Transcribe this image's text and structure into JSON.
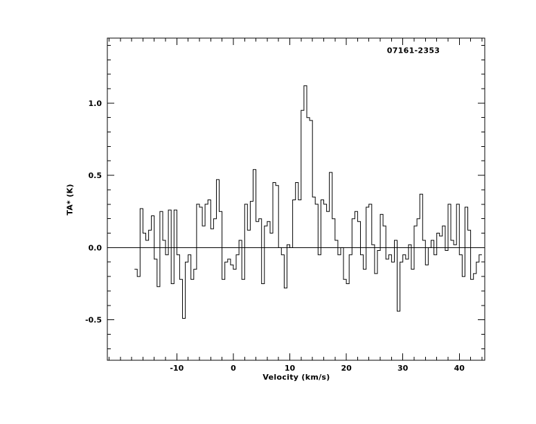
{
  "chart_data": {
    "type": "line",
    "subtype": "step-histogram-spectrum",
    "title": "07161-2353",
    "xlabel": "Velocity (km/s)",
    "ylabel": "TA* (K)",
    "xlim": [
      -22.3,
      44.5
    ],
    "ylim": [
      -0.78,
      1.45
    ],
    "x_tick_values": [
      -10,
      0,
      10,
      20,
      30,
      40
    ],
    "x_tick_labels": [
      "-10",
      "0",
      "10",
      "20",
      "30",
      "40"
    ],
    "x_minor_step": 2,
    "y_tick_values": [
      -0.5,
      0.0,
      0.5,
      1.0
    ],
    "y_tick_labels": [
      "-0.5",
      "0.0",
      "0.5",
      "1.0"
    ],
    "y_minor_step": 0.1,
    "zero_line_y": 0.0,
    "grid": false,
    "legend": false,
    "line_color": "#000000",
    "background_color": "#ffffff",
    "x_start": -17.5,
    "channel_width": 0.5,
    "values": [
      -0.15,
      -0.2,
      0.27,
      0.1,
      0.05,
      0.12,
      0.22,
      -0.08,
      -0.27,
      0.25,
      0.05,
      -0.05,
      0.26,
      -0.25,
      0.26,
      -0.05,
      -0.22,
      -0.49,
      -0.1,
      -0.05,
      -0.22,
      -0.15,
      0.3,
      0.28,
      0.15,
      0.3,
      0.33,
      0.13,
      0.2,
      0.47,
      0.25,
      -0.22,
      -0.1,
      -0.08,
      -0.12,
      -0.15,
      -0.05,
      0.05,
      -0.22,
      0.3,
      0.12,
      0.32,
      0.54,
      0.18,
      0.2,
      -0.25,
      0.15,
      0.18,
      0.1,
      0.45,
      0.43,
      0.0,
      -0.05,
      -0.28,
      0.02,
      0.0,
      0.33,
      0.45,
      0.33,
      0.95,
      1.12,
      0.9,
      0.88,
      0.35,
      0.3,
      -0.05,
      0.33,
      0.3,
      0.25,
      0.52,
      0.2,
      0.05,
      -0.05,
      0.0,
      -0.22,
      -0.25,
      -0.05,
      0.2,
      0.25,
      0.18,
      -0.05,
      -0.15,
      0.28,
      0.3,
      0.02,
      -0.18,
      -0.02,
      0.23,
      0.15,
      -0.08,
      -0.05,
      -0.1,
      0.05,
      -0.44,
      -0.1,
      -0.05,
      -0.08,
      0.02,
      -0.15,
      0.15,
      0.2,
      0.37,
      0.05,
      -0.12,
      0.0,
      0.05,
      -0.05,
      0.1,
      0.08,
      0.15,
      -0.02,
      0.3,
      0.05,
      0.02,
      0.3,
      -0.05,
      -0.2,
      0.28,
      0.12,
      -0.22,
      -0.18,
      -0.1,
      -0.05
    ]
  }
}
